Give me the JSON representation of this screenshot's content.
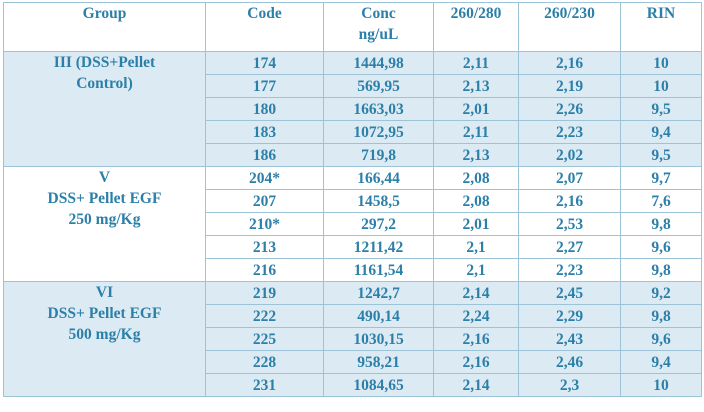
{
  "table": {
    "headers": [
      [
        "Group"
      ],
      [
        "Code"
      ],
      [
        "Conc",
        "ng/uL"
      ],
      [
        "260/280"
      ],
      [
        "260/230"
      ],
      [
        "RIN"
      ]
    ],
    "groups": [
      {
        "label": [
          "III (DSS+Pellet",
          "Control)"
        ],
        "rows": [
          [
            "174",
            "1444,98",
            "2,11",
            "2,16",
            "10"
          ],
          [
            "177",
            "569,95",
            "2,13",
            "2,19",
            "10"
          ],
          [
            "180",
            "1663,03",
            "2,01",
            "2,26",
            "9,5"
          ],
          [
            "183",
            "1072,95",
            "2,11",
            "2,23",
            "9,4"
          ],
          [
            "186",
            "719,8",
            "2,13",
            "2,02",
            "9,5"
          ]
        ]
      },
      {
        "label": [
          "V",
          "DSS+ Pellet EGF",
          "250 mg/Kg"
        ],
        "rows": [
          [
            "204*",
            "166,44",
            "2,08",
            "2,07",
            "9,7"
          ],
          [
            "207",
            "1458,5",
            "2,08",
            "2,16",
            "7,6"
          ],
          [
            "210*",
            "297,2",
            "2,01",
            "2,53",
            "9,8"
          ],
          [
            "213",
            "1211,42",
            "2,1",
            "2,27",
            "9,6"
          ],
          [
            "216",
            "1161,54",
            "2,1",
            "2,23",
            "9,8"
          ]
        ]
      },
      {
        "label": [
          "VI",
          "DSS+ Pellet EGF",
          "500 mg/Kg"
        ],
        "rows": [
          [
            "219",
            "1242,7",
            "2,14",
            "2,45",
            "9,2"
          ],
          [
            "222",
            "490,14",
            "2,24",
            "2,29",
            "9,8"
          ],
          [
            "225",
            "1030,15",
            "2,16",
            "2,43",
            "9,6"
          ],
          [
            "228",
            "958,21",
            "2,16",
            "2,46",
            "9,4"
          ],
          [
            "231",
            "1084,65",
            "2,14",
            "2,3",
            "10"
          ]
        ]
      }
    ]
  }
}
